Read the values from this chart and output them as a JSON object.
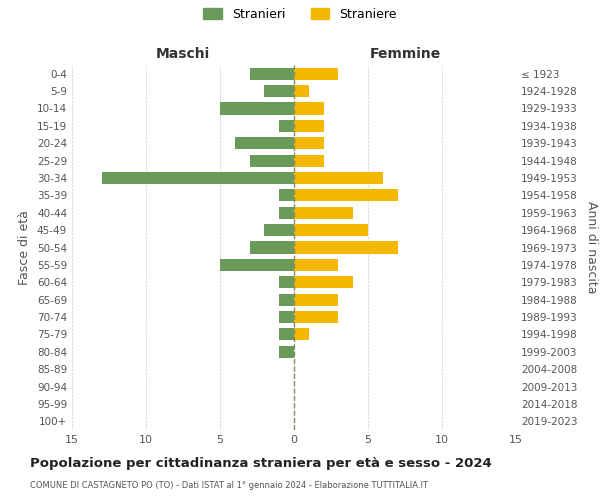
{
  "age_groups": [
    "0-4",
    "5-9",
    "10-14",
    "15-19",
    "20-24",
    "25-29",
    "30-34",
    "35-39",
    "40-44",
    "45-49",
    "50-54",
    "55-59",
    "60-64",
    "65-69",
    "70-74",
    "75-79",
    "80-84",
    "85-89",
    "90-94",
    "95-99",
    "100+"
  ],
  "birth_years": [
    "2019-2023",
    "2014-2018",
    "2009-2013",
    "2004-2008",
    "1999-2003",
    "1994-1998",
    "1989-1993",
    "1984-1988",
    "1979-1983",
    "1974-1978",
    "1969-1973",
    "1964-1968",
    "1959-1963",
    "1954-1958",
    "1949-1953",
    "1944-1948",
    "1939-1943",
    "1934-1938",
    "1929-1933",
    "1924-1928",
    "≤ 1923"
  ],
  "males": [
    3,
    2,
    5,
    1,
    4,
    3,
    13,
    1,
    1,
    2,
    3,
    5,
    1,
    1,
    1,
    1,
    1,
    0,
    0,
    0,
    0
  ],
  "females": [
    3,
    1,
    2,
    2,
    2,
    2,
    6,
    7,
    4,
    5,
    7,
    3,
    4,
    3,
    3,
    1,
    0,
    0,
    0,
    0,
    0
  ],
  "male_color": "#6a9a5a",
  "female_color": "#f5b800",
  "bg_color": "#ffffff",
  "grid_color": "#cccccc",
  "title": "Popolazione per cittadinanza straniera per età e sesso - 2024",
  "subtitle": "COMUNE DI CASTAGNETO PO (TO) - Dati ISTAT al 1° gennaio 2024 - Elaborazione TUTTITALIA.IT",
  "xlabel_left": "Maschi",
  "xlabel_right": "Femmine",
  "ylabel_left": "Fasce di età",
  "ylabel_right": "Anni di nascita",
  "legend_male": "Stranieri",
  "legend_female": "Straniere",
  "xlim": 15,
  "bar_height": 0.7
}
